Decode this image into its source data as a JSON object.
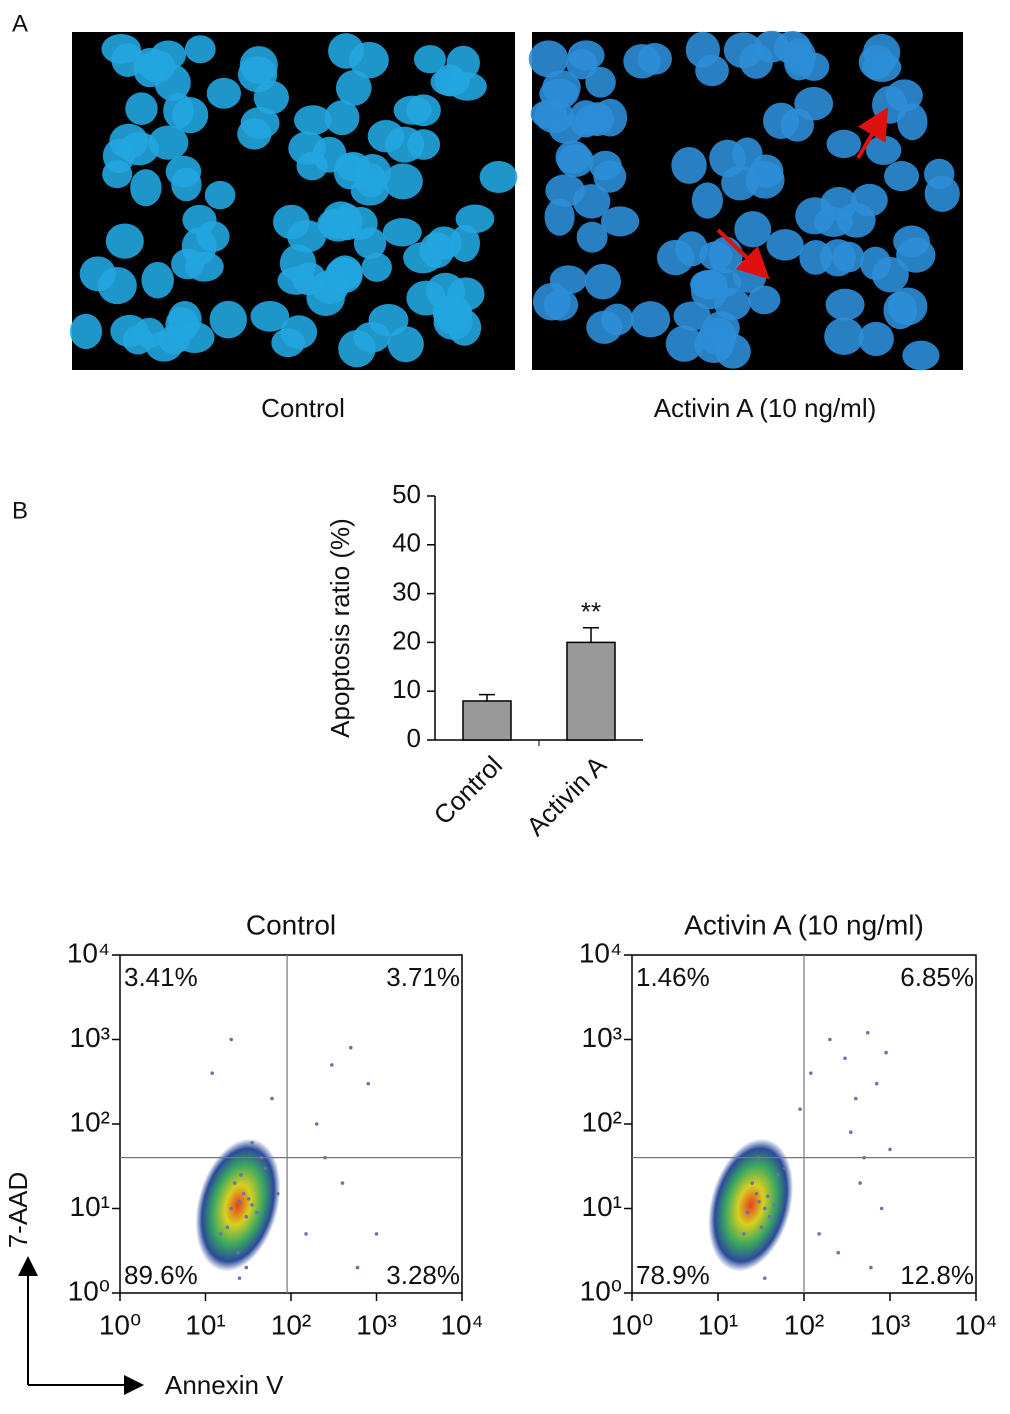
{
  "panel_a": {
    "label": "A",
    "captions": [
      "Control",
      "Activin A (10 ng/ml)"
    ]
  },
  "panel_b_label": "B",
  "flow_axes": {
    "x_label": "Annexin V",
    "y_label": "7-AAD"
  },
  "chart_data": [
    {
      "type": "bar",
      "ylabel": "Apoptosis ratio (%)",
      "categories": [
        "Control",
        "Activin A"
      ],
      "values": [
        8,
        20
      ],
      "errors": [
        1.3,
        3
      ],
      "annotations": [
        null,
        "**"
      ],
      "color": "#999999",
      "ylim": [
        0,
        50
      ],
      "yticks": [
        0,
        10,
        20,
        30,
        40,
        50
      ]
    },
    {
      "type": "scatter",
      "title": "Control",
      "log_scale": true,
      "color": "#6a74a8",
      "xlim": [
        1,
        10000
      ],
      "ylim": [
        1,
        10000
      ],
      "xticks": [
        {
          "value": 1,
          "label": "10⁰"
        },
        {
          "value": 10,
          "label": "10¹"
        },
        {
          "value": 100,
          "label": "10²"
        },
        {
          "value": 1000,
          "label": "10³"
        },
        {
          "value": 10000,
          "label": "10⁴"
        }
      ],
      "yticks": [
        {
          "value": 1,
          "label": "10⁰"
        },
        {
          "value": 10,
          "label": "10¹"
        },
        {
          "value": 100,
          "label": "10²"
        },
        {
          "value": 1000,
          "label": "10³"
        },
        {
          "value": 10000,
          "label": "10⁴"
        }
      ],
      "gate_x": 90,
      "gate_y": 40,
      "quadrants": {
        "values": [
          3.41,
          3.71,
          89.6,
          3.28
        ],
        "value_labels": [
          "3.41%",
          "3.71%",
          "89.6%",
          "3.28%"
        ]
      },
      "x": [
        20,
        25,
        30,
        18,
        28,
        35,
        22,
        40,
        15,
        26,
        32,
        24,
        50,
        70,
        300,
        500,
        800,
        200,
        30,
        45,
        12,
        150,
        600,
        25,
        20,
        35,
        400,
        1000,
        60,
        250
      ],
      "y": [
        10,
        12,
        8,
        6,
        15,
        11,
        20,
        9,
        5,
        25,
        13,
        3,
        30,
        15,
        500,
        800,
        300,
        100,
        2,
        40,
        400,
        5,
        2,
        1.5,
        1000,
        60,
        20,
        5,
        200,
        40
      ]
    },
    {
      "type": "scatter",
      "title": "Activin A (10 ng/ml)",
      "log_scale": true,
      "color": "#6a74a8",
      "xlim": [
        1,
        10000
      ],
      "ylim": [
        1,
        10000
      ],
      "xticks": [
        {
          "value": 1,
          "label": "10⁰"
        },
        {
          "value": 10,
          "label": "10¹"
        },
        {
          "value": 100,
          "label": "10²"
        },
        {
          "value": 1000,
          "label": "10³"
        },
        {
          "value": 10000,
          "label": "10⁴"
        }
      ],
      "yticks": [
        {
          "value": 1,
          "label": "10⁰"
        },
        {
          "value": 10,
          "label": "10¹"
        },
        {
          "value": 100,
          "label": "10²"
        },
        {
          "value": 1000,
          "label": "10³"
        },
        {
          "value": 10000,
          "label": "10⁴"
        }
      ],
      "gate_x": 100,
      "gate_y": 40,
      "quadrants": {
        "values": [
          1.46,
          6.85,
          78.9,
          12.8
        ],
        "value_labels": [
          "1.46%",
          "6.85%",
          "78.9%",
          "12.8%"
        ]
      },
      "x": [
        30,
        35,
        28,
        40,
        25,
        45,
        32,
        50,
        22,
        38,
        60,
        300,
        500,
        400,
        800,
        200,
        150,
        700,
        1000,
        250,
        350,
        600,
        35,
        30,
        120,
        450,
        90,
        900,
        20,
        550
      ],
      "y": [
        12,
        10,
        15,
        8,
        20,
        11,
        6,
        25,
        9,
        14,
        30,
        600,
        40,
        200,
        10,
        1000,
        5,
        300,
        50,
        3,
        80,
        2,
        1.5,
        40,
        400,
        20,
        150,
        700,
        5,
        1200
      ]
    }
  ]
}
